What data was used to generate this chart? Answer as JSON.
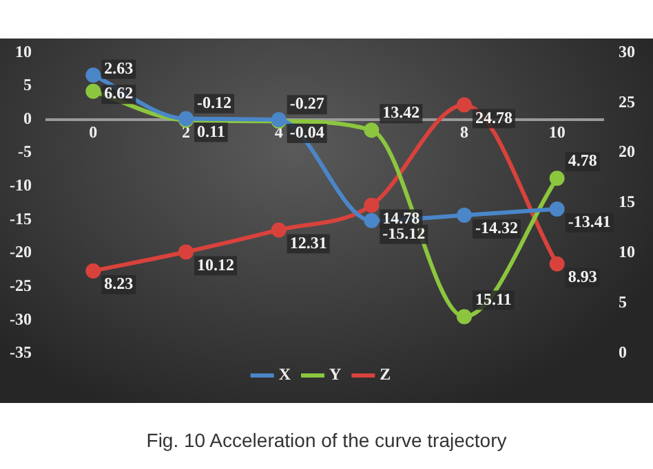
{
  "chart_data": {
    "type": "line",
    "x": [
      0,
      2,
      4,
      6,
      8,
      10
    ],
    "xlim": [
      -1,
      11
    ],
    "xticks": [
      0,
      2,
      4,
      6,
      8,
      10
    ],
    "ylim": [
      -35,
      10
    ],
    "yticks": [
      -35,
      -30,
      -25,
      -20,
      -15,
      -10,
      -5,
      0,
      5,
      10
    ],
    "y2lim": [
      0,
      30
    ],
    "y2ticks": [
      0,
      5,
      10,
      15,
      20,
      25,
      30
    ],
    "series": [
      {
        "name": "X",
        "color": "#4a86c8",
        "values": [
          6.62,
          0.11,
          -0.04,
          -15.12,
          -14.32,
          -13.41
        ],
        "value_labels": [
          "6.62",
          "0.11",
          "-0.04",
          "-15.12",
          "-14.32",
          "-13.41"
        ]
      },
      {
        "name": "Y",
        "color": "#8cc63f",
        "values": [
          4.2,
          -0.12,
          -0.27,
          -1.6,
          -29.5,
          -8.8
        ],
        "value_labels": [
          null,
          "-0.12",
          "-0.27",
          null,
          null,
          null
        ]
      },
      {
        "name": "Z",
        "color": "#d9423c",
        "axis": "y2",
        "values": [
          8.23,
          10.12,
          12.31,
          14.78,
          24.78,
          8.93
        ],
        "value_labels": [
          "8.23",
          "10.12",
          "12.31",
          "14.78",
          "24.78",
          "8.93"
        ]
      }
    ],
    "marker": "circle",
    "grid": false,
    "legend": "bottom",
    "annotations": [
      "Fig. 10   Acceleration of the curve trajectory",
      {
        "text": "2.63",
        "x": 0,
        "y": 4.2
      },
      {
        "text": "13.42",
        "x": 6,
        "y": -1.6
      },
      {
        "text": "15.11",
        "x": 8,
        "y": -29.5
      },
      {
        "text": "4.78",
        "x": 10,
        "y": -8.8
      }
    ]
  }
}
